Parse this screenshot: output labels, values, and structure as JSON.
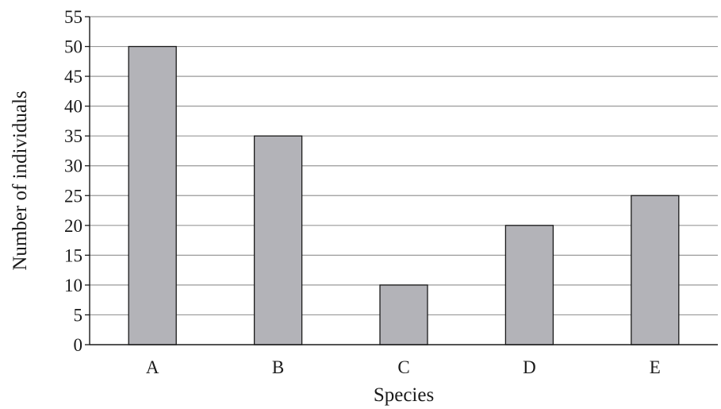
{
  "chart_data": {
    "type": "bar",
    "title": "",
    "xlabel": "Species",
    "ylabel": "Number of individuals",
    "categories": [
      "A",
      "B",
      "C",
      "D",
      "E"
    ],
    "values": [
      50,
      35,
      10,
      20,
      25
    ],
    "ylim": [
      0,
      55
    ],
    "yticks": [
      0,
      5,
      10,
      15,
      20,
      25,
      30,
      35,
      40,
      45,
      50,
      55
    ],
    "grid": "horizontal",
    "legend": "none",
    "bar_color": "#b3b3b8",
    "bar_edge_color": "#1a1a1a",
    "grid_color": "#999999",
    "axis_color": "#1a1a1a"
  }
}
